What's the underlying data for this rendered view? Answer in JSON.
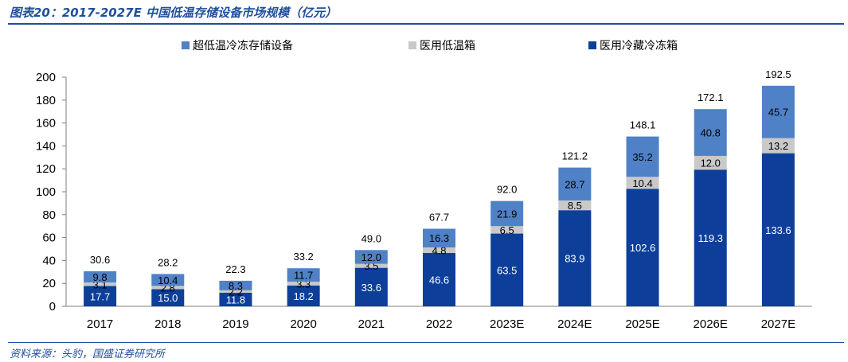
{
  "header": {
    "title": "图表20：2017-2027E 中国低温存储设备市场规模（亿元）"
  },
  "footer": {
    "source": "资料来源：头豹，国盛证券研究所"
  },
  "colors": {
    "ultra_low": "#4f81c7",
    "medical_fridge": "#c9c9c9",
    "medical_freezer": "#0d3f9a",
    "rule": "#1f4e9c"
  },
  "chart_data": {
    "type": "bar",
    "stacked": true,
    "categories": [
      "2017",
      "2018",
      "2019",
      "2020",
      "2021",
      "2022",
      "2023E",
      "2024E",
      "2025E",
      "2026E",
      "2027E"
    ],
    "series": [
      {
        "name": "医用冷藏冷冻箱",
        "color": "#0d3f9a",
        "values": [
          17.7,
          15.0,
          11.8,
          18.2,
          33.6,
          46.6,
          63.5,
          83.9,
          102.6,
          119.3,
          133.6
        ]
      },
      {
        "name": "医用低温箱",
        "color": "#c9c9c9",
        "values": [
          3.1,
          2.8,
          2.2,
          3.3,
          3.5,
          4.8,
          6.5,
          8.5,
          10.4,
          12.0,
          13.2
        ]
      },
      {
        "name": "超低温冷冻存储设备",
        "color": "#4f81c7",
        "values": [
          9.8,
          10.4,
          8.3,
          11.7,
          12.0,
          16.3,
          21.9,
          28.7,
          35.2,
          40.8,
          45.7
        ]
      }
    ],
    "totals": [
      30.6,
      28.2,
      22.3,
      33.2,
      49.0,
      67.7,
      92.0,
      121.2,
      148.1,
      172.1,
      192.5
    ],
    "legend_order": [
      "超低温冷冻存储设备",
      "医用低温箱",
      "医用冷藏冷冻箱"
    ],
    "legend_position": "top-center",
    "ylim": [
      0,
      200
    ],
    "yticks": [
      0,
      20,
      40,
      60,
      80,
      100,
      120,
      140,
      160,
      180,
      200
    ],
    "grid": false
  }
}
